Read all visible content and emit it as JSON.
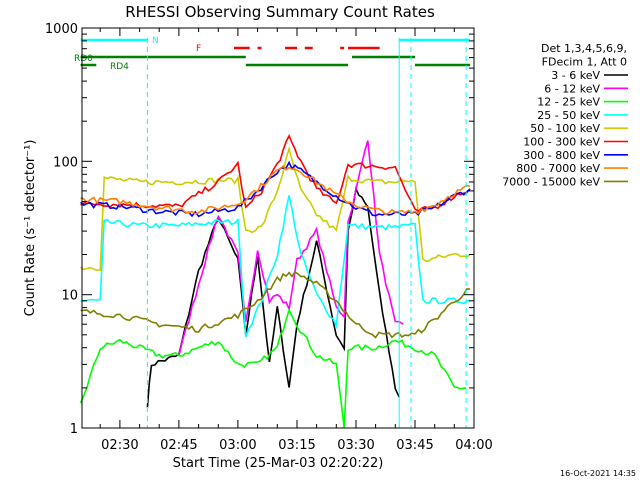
{
  "chart_data": {
    "type": "line",
    "title": "RHESSI Observing Summary Count Rates",
    "xlabel": "Start Time (25-Mar-03 02:20:22)",
    "ylabel": "Count Rate (s⁻¹ detector⁻¹)",
    "y_scale": "log",
    "ylim": [
      1,
      1000
    ],
    "xlim": [
      "02:20:22",
      "04:00:00"
    ],
    "x_ticks": [
      "02:30",
      "02:45",
      "03:00",
      "03:15",
      "03:30",
      "03:45",
      "04:00"
    ],
    "y_ticks": [
      "1",
      "10",
      "100",
      "1000"
    ],
    "footer_date": "16-Oct-2021 14:35",
    "legend": {
      "position": "right",
      "header": [
        "Det 1,3,4,5,6,9,",
        "FDecim 1, Att 0"
      ]
    },
    "flags": [
      {
        "label": "N",
        "color": "#00ffff"
      },
      {
        "label": "F",
        "color": "#ff0000"
      },
      {
        "label": "RD0",
        "color": "#008000"
      },
      {
        "label": "RD4",
        "color": "#008000"
      }
    ],
    "series": [
      {
        "name": "3 - 6 keV",
        "color": "#000000",
        "x": [
          "02:20",
          "02:35",
          "02:37",
          "02:38",
          "02:45",
          "02:50",
          "02:55",
          "03:00",
          "03:02",
          "03:05",
          "03:08",
          "03:10",
          "03:13",
          "03:15",
          "03:20",
          "03:25",
          "03:27",
          "03:28",
          "03:30",
          "03:33",
          "03:36",
          "03:40",
          "03:42",
          "03:44"
        ],
        "y": [
          null,
          null,
          1.5,
          3,
          3.5,
          15,
          38,
          18,
          5,
          20,
          3,
          8,
          2,
          6,
          25,
          5,
          4,
          30,
          60,
          45,
          10,
          2,
          1.5,
          null
        ]
      },
      {
        "name": "6 - 12 keV",
        "color": "#ff00ff",
        "x": [
          "02:45",
          "02:50",
          "02:55",
          "03:00",
          "03:02",
          "03:05",
          "03:08",
          "03:10",
          "03:13",
          "03:15",
          "03:20",
          "03:25",
          "03:27",
          "03:28",
          "03:30",
          "03:33",
          "03:36",
          "03:40",
          "03:42"
        ],
        "y": [
          3.5,
          12,
          40,
          20,
          6,
          22,
          9,
          10,
          8,
          18,
          30,
          8,
          7,
          35,
          60,
          150,
          20,
          6,
          6
        ]
      },
      {
        "name": "12 - 25 keV",
        "color": "#00ff00",
        "x": [
          "02:20",
          "02:25",
          "02:30",
          "02:35",
          "02:40",
          "02:45",
          "02:50",
          "02:55",
          "03:00",
          "03:05",
          "03:10",
          "03:13",
          "03:15",
          "03:20",
          "03:25",
          "03:27",
          "03:28",
          "03:35",
          "03:40",
          "03:45",
          "03:50",
          "03:55",
          "03:58"
        ],
        "y": [
          1.5,
          4,
          4.5,
          4,
          3.5,
          3.5,
          4,
          4.5,
          3,
          3,
          4,
          8,
          6,
          3.5,
          3,
          1,
          4,
          4,
          4.5,
          4,
          3.5,
          2,
          2
        ]
      },
      {
        "name": "25 - 50 keV",
        "color": "#00ffff",
        "x": [
          "02:20",
          "02:25",
          "02:26",
          "02:35",
          "02:45",
          "02:55",
          "03:00",
          "03:02",
          "03:06",
          "03:10",
          "03:13",
          "03:16",
          "03:20",
          "03:25",
          "03:28",
          "03:35",
          "03:40",
          "03:45",
          "03:47",
          "03:55",
          "03:59"
        ],
        "y": [
          9,
          9,
          35,
          33,
          33,
          35,
          35,
          5,
          9,
          20,
          55,
          20,
          10,
          6,
          33,
          32,
          32,
          33,
          9,
          9,
          9
        ]
      },
      {
        "name": "50 - 100 keV",
        "color": "#cccc00",
        "x": [
          "02:20",
          "02:25",
          "02:26",
          "02:35",
          "02:45",
          "02:55",
          "03:00",
          "03:02",
          "03:06",
          "03:10",
          "03:13",
          "03:16",
          "03:20",
          "03:25",
          "03:28",
          "03:35",
          "03:40",
          "03:45",
          "03:47",
          "03:55",
          "03:59"
        ],
        "y": [
          16,
          16,
          75,
          70,
          70,
          72,
          72,
          30,
          32,
          60,
          120,
          60,
          40,
          30,
          75,
          70,
          70,
          72,
          18,
          20,
          20
        ]
      },
      {
        "name": "100 - 300 keV",
        "color": "#ff0000",
        "x": [
          "02:20",
          "02:25",
          "02:35",
          "02:45",
          "02:55",
          "03:00",
          "03:02",
          "03:06",
          "03:10",
          "03:13",
          "03:16",
          "03:20",
          "03:25",
          "03:28",
          "03:35",
          "03:40",
          "03:45",
          "03:50",
          "03:55",
          "03:59"
        ],
        "y": [
          48,
          48,
          47,
          46,
          70,
          95,
          44,
          60,
          95,
          150,
          100,
          62,
          48,
          95,
          92,
          90,
          42,
          45,
          55,
          62
        ]
      },
      {
        "name": "300 - 800 keV",
        "color": "#0000ff",
        "x": [
          "02:20",
          "02:30",
          "02:40",
          "02:50",
          "03:00",
          "03:05",
          "03:10",
          "03:13",
          "03:16",
          "03:20",
          "03:25",
          "03:30",
          "03:35",
          "03:40",
          "03:45",
          "03:50",
          "03:55",
          "03:59"
        ],
        "y": [
          48,
          46,
          42,
          40,
          45,
          60,
          85,
          95,
          85,
          70,
          55,
          45,
          40,
          40,
          40,
          45,
          55,
          62
        ]
      },
      {
        "name": "800 - 7000 keV",
        "color": "#ff8000",
        "x": [
          "02:20",
          "02:30",
          "02:40",
          "02:50",
          "03:00",
          "03:05",
          "03:10",
          "03:13",
          "03:16",
          "03:20",
          "03:25",
          "03:30",
          "03:35",
          "03:40",
          "03:45",
          "03:50",
          "03:55",
          "03:59"
        ],
        "y": [
          52,
          50,
          45,
          42,
          48,
          62,
          85,
          92,
          85,
          70,
          56,
          47,
          43,
          41,
          42,
          47,
          58,
          65
        ]
      },
      {
        "name": "7000 - 15000 keV",
        "color": "#808000",
        "x": [
          "02:20",
          "02:30",
          "02:40",
          "02:50",
          "03:00",
          "03:05",
          "03:10",
          "03:13",
          "03:16",
          "03:20",
          "03:25",
          "03:30",
          "03:35",
          "03:40",
          "03:45",
          "03:50",
          "03:55",
          "03:59"
        ],
        "y": [
          7.5,
          7,
          6,
          5.5,
          7,
          9,
          13,
          14.5,
          14,
          12,
          9,
          6,
          5,
          5,
          5,
          6.5,
          9,
          11
        ]
      }
    ]
  }
}
